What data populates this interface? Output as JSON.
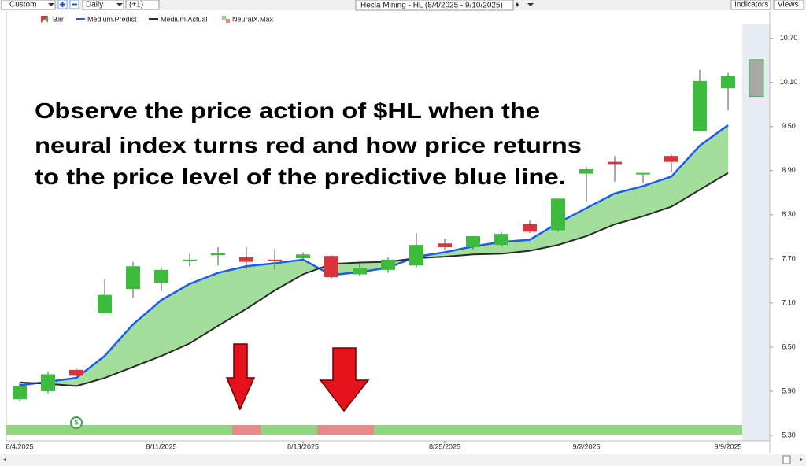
{
  "toolbar": {
    "range": "Custom",
    "interval": "Daily",
    "offset": "(+1)",
    "indicators": "Indicators",
    "views": "Views"
  },
  "chart_data": {
    "type": "candlestick",
    "title": "Hecla Mining - HL (8/4/2025 - 9/10/2025)",
    "categories": [
      "8/4/2025",
      null,
      null,
      null,
      null,
      "8/11/2025",
      null,
      null,
      null,
      null,
      "8/18/2025",
      null,
      null,
      null,
      null,
      "8/25/2025",
      null,
      null,
      null,
      null,
      "9/2/2025",
      null,
      null,
      null,
      null,
      "9/9/2025",
      null
    ],
    "candles": {
      "name": "Bar",
      "open": [
        5.79,
        5.9,
        6.19,
        6.96,
        7.29,
        7.37,
        7.68,
        7.75,
        7.72,
        7.69,
        7.71,
        7.74,
        7.49,
        7.55,
        7.61,
        7.91,
        7.86,
        7.89,
        8.17,
        8.09,
        8.86,
        9.02,
        8.85,
        9.1,
        9.44,
        10.02,
        9.91
      ],
      "high": [
        6.01,
        6.17,
        6.21,
        7.42,
        7.66,
        7.58,
        7.77,
        7.86,
        7.86,
        7.83,
        7.79,
        7.75,
        7.64,
        7.72,
        8.05,
        7.97,
        8.01,
        8.07,
        8.22,
        8.52,
        8.95,
        9.1,
        8.87,
        9.12,
        10.27,
        10.23,
        10.41
      ],
      "low": [
        5.76,
        5.87,
        6.09,
        6.96,
        7.17,
        7.26,
        7.6,
        7.61,
        7.56,
        7.55,
        7.67,
        7.43,
        7.47,
        7.51,
        7.58,
        7.83,
        7.83,
        7.86,
        8.05,
        8.07,
        8.47,
        8.75,
        8.73,
        8.88,
        9.44,
        9.72,
        9.91
      ],
      "close": [
        5.97,
        6.13,
        6.11,
        7.21,
        7.6,
        7.55,
        7.69,
        7.78,
        7.66,
        7.68,
        7.76,
        7.45,
        7.58,
        7.69,
        7.89,
        7.86,
        8.01,
        8.04,
        8.07,
        8.52,
        8.92,
        8.99,
        8.87,
        9.02,
        10.12,
        10.19,
        10.41
      ],
      "up_color": "#3dbb3d",
      "down_color": "#d9343a",
      "projection_color": "#a8a8a8"
    },
    "series": [
      {
        "name": "Medium.Predict",
        "color": "#1a5ef0",
        "values": [
          5.98,
          6.03,
          6.08,
          6.38,
          6.81,
          7.14,
          7.36,
          7.51,
          7.6,
          7.64,
          7.69,
          7.48,
          7.52,
          7.58,
          7.73,
          7.79,
          7.87,
          7.93,
          7.96,
          8.19,
          8.39,
          8.59,
          8.69,
          8.82,
          9.24,
          9.52,
          null
        ]
      },
      {
        "name": "Medium.Actual",
        "color": "#2b2b2b",
        "values": [
          6.02,
          6.0,
          5.97,
          6.08,
          6.23,
          6.38,
          6.55,
          6.79,
          7.02,
          7.27,
          7.49,
          7.63,
          7.65,
          7.66,
          7.71,
          7.73,
          7.76,
          7.77,
          7.81,
          7.89,
          8.01,
          8.17,
          8.28,
          8.41,
          8.64,
          8.87,
          null
        ]
      }
    ],
    "area_color": "#9fdc98",
    "indicator": {
      "name": "NeuralX.Max",
      "up_color": "#8fd67f",
      "down_color": "#e88a8a",
      "values": [
        1,
        1,
        1,
        1,
        1,
        1,
        1,
        1,
        -1,
        1,
        1,
        -1,
        -1,
        1,
        1,
        1,
        1,
        1,
        1,
        1,
        1,
        1,
        1,
        1,
        1,
        1,
        null
      ]
    },
    "signal_marker": "$",
    "annotation": [
      "Observe the price action of $HL when the",
      "neural index turns red and how price returns",
      "to the price level of the predictive blue line."
    ],
    "ylim": [
      5.225,
      10.89
    ],
    "yticks": [
      {
        "value": 5.3,
        "label": "5.30"
      },
      {
        "value": 5.9,
        "label": "5.90"
      },
      {
        "value": 6.5,
        "label": "6.50"
      },
      {
        "value": 7.1,
        "label": "7.10"
      },
      {
        "value": 7.7,
        "label": "7.70"
      },
      {
        "value": 8.3,
        "label": "8.30"
      },
      {
        "value": 8.9,
        "label": "8.90"
      },
      {
        "value": 9.5,
        "label": "9.50"
      },
      {
        "value": 10.1,
        "label": "10.10"
      },
      {
        "value": 10.7,
        "label": "10.70"
      }
    ]
  }
}
